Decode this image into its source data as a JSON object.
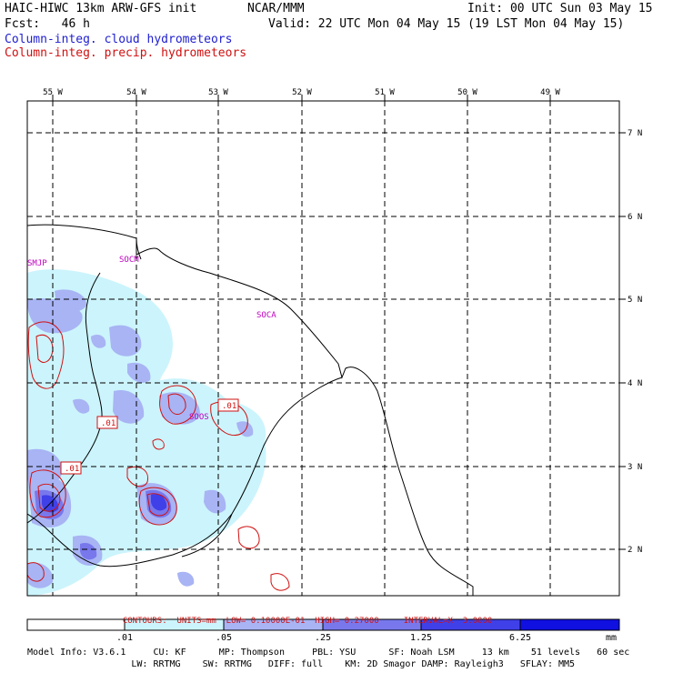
{
  "header": {
    "model_title": "HAIC-HIWC 13km ARW-GFS init",
    "org": "NCAR/MMM",
    "init": "Init: 00 UTC Sun 03 May 15",
    "fcst": "Fcst:   46 h",
    "valid": "Valid: 22 UTC Mon 04 May 15 (19 LST Mon 04 May 15)",
    "field_cloud": "Column-integ. cloud hydrometeors",
    "field_precip": "Column-integ. precip. hydrometeors"
  },
  "map": {
    "lon_labels": [
      "55 W",
      "54 W",
      "53 W",
      "52 W",
      "51 W",
      "50 W",
      "49 W"
    ],
    "lat_labels": [
      "7 N",
      "6 N",
      "5 N",
      "4 N",
      "3 N",
      "2 N"
    ],
    "stations": [
      "SMJP",
      "SOCM",
      "SOCA",
      "SOOS"
    ],
    "contour_labels": [
      ".01",
      ".01",
      ".01"
    ]
  },
  "contours": {
    "title": "CONTOURS:",
    "units": "UNITS=mm",
    "low": "LOW= 0.10000E-01",
    "high": "HIGH= 0.27000",
    "interval": "INTERVAL=X  3.0000"
  },
  "colorbar": {
    "labels": [
      ".01",
      ".05",
      ".25",
      "1.25",
      "6.25",
      "mm"
    ],
    "colors": [
      "#ffffff",
      "#ccf4fc",
      "#a8b4f4",
      "#7878ec",
      "#4040e8",
      "#1010e0"
    ]
  },
  "model_info": {
    "line1": "Model Info: V3.6.1     CU: KF      MP: Thompson     PBL: YSU      SF: Noah LSM     13 km    51 levels   60 sec",
    "line2": "                   LW: RRTMG    SW: RRTMG   DIFF: full    KM: 2D Smagor DAMP: Rayleigh3   SFLAY: MM5"
  }
}
